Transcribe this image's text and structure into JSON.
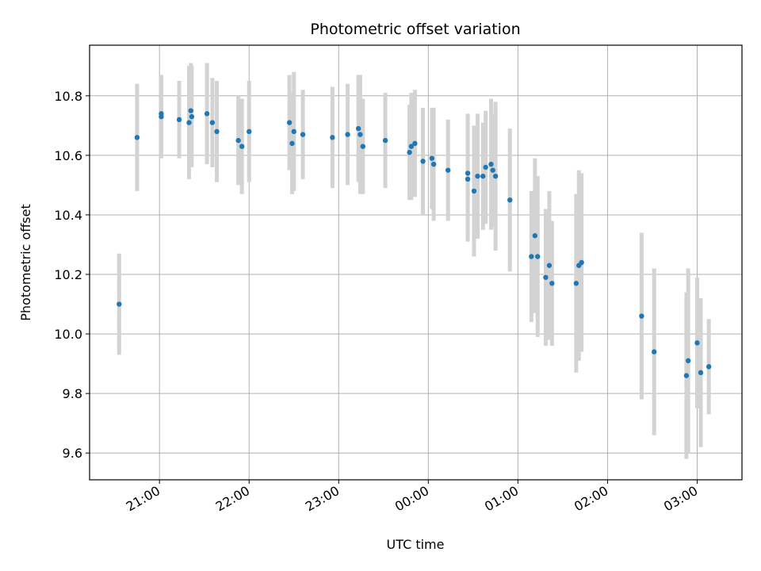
{
  "chart_data": {
    "type": "scatter",
    "title": "Photometric offset variation",
    "xlabel": "UTC time",
    "ylabel": "Photometric offset",
    "x_unit": "hours",
    "xlim": [
      -3.78,
      3.5
    ],
    "ylim": [
      9.51,
      10.97
    ],
    "grid": true,
    "x_ticks": [
      {
        "value": -3,
        "label": "21:00"
      },
      {
        "value": -2,
        "label": "22:00"
      },
      {
        "value": -1,
        "label": "23:00"
      },
      {
        "value": 0,
        "label": "00:00"
      },
      {
        "value": 1,
        "label": "01:00"
      },
      {
        "value": 2,
        "label": "02:00"
      },
      {
        "value": 3,
        "label": "03:00"
      }
    ],
    "y_ticks": [
      {
        "value": 9.6,
        "label": "9.6"
      },
      {
        "value": 9.8,
        "label": "9.8"
      },
      {
        "value": 10.0,
        "label": "10.0"
      },
      {
        "value": 10.2,
        "label": "10.2"
      },
      {
        "value": 10.4,
        "label": "10.4"
      },
      {
        "value": 10.6,
        "label": "10.6"
      },
      {
        "value": 10.8,
        "label": "10.8"
      }
    ],
    "colors": {
      "point": "#1f77b4",
      "errorbar": "#d3d3d3",
      "grid": "#b0b0b0"
    },
    "points": [
      {
        "x": -3.45,
        "y": 10.1,
        "err": 0.17
      },
      {
        "x": -3.25,
        "y": 10.66,
        "err": 0.18
      },
      {
        "x": -2.98,
        "y": 10.73,
        "err": 0.14
      },
      {
        "x": -2.98,
        "y": 10.74,
        "err": 0.13
      },
      {
        "x": -2.78,
        "y": 10.72,
        "err": 0.13
      },
      {
        "x": -2.67,
        "y": 10.71,
        "err": 0.19
      },
      {
        "x": -2.65,
        "y": 10.75,
        "err": 0.16
      },
      {
        "x": -2.64,
        "y": 10.73,
        "err": 0.17
      },
      {
        "x": -2.47,
        "y": 10.74,
        "err": 0.17
      },
      {
        "x": -2.41,
        "y": 10.71,
        "err": 0.15
      },
      {
        "x": -2.36,
        "y": 10.68,
        "err": 0.17
      },
      {
        "x": -2.12,
        "y": 10.65,
        "err": 0.15
      },
      {
        "x": -2.08,
        "y": 10.63,
        "err": 0.16
      },
      {
        "x": -2.0,
        "y": 10.68,
        "err": 0.17
      },
      {
        "x": -1.55,
        "y": 10.71,
        "err": 0.16
      },
      {
        "x": -1.52,
        "y": 10.64,
        "err": 0.17
      },
      {
        "x": -1.5,
        "y": 10.68,
        "err": 0.2
      },
      {
        "x": -1.4,
        "y": 10.67,
        "err": 0.15
      },
      {
        "x": -1.07,
        "y": 10.66,
        "err": 0.17
      },
      {
        "x": -0.9,
        "y": 10.67,
        "err": 0.17
      },
      {
        "x": -0.78,
        "y": 10.69,
        "err": 0.18
      },
      {
        "x": -0.76,
        "y": 10.67,
        "err": 0.2
      },
      {
        "x": -0.73,
        "y": 10.63,
        "err": 0.16
      },
      {
        "x": -0.48,
        "y": 10.65,
        "err": 0.16
      },
      {
        "x": -0.21,
        "y": 10.61,
        "err": 0.16
      },
      {
        "x": -0.19,
        "y": 10.63,
        "err": 0.18
      },
      {
        "x": -0.15,
        "y": 10.64,
        "err": 0.18
      },
      {
        "x": -0.06,
        "y": 10.58,
        "err": 0.18
      },
      {
        "x": 0.04,
        "y": 10.59,
        "err": 0.17
      },
      {
        "x": 0.06,
        "y": 10.57,
        "err": 0.19
      },
      {
        "x": 0.22,
        "y": 10.55,
        "err": 0.17
      },
      {
        "x": 0.44,
        "y": 10.54,
        "err": 0.2
      },
      {
        "x": 0.44,
        "y": 10.52,
        "err": 0.21
      },
      {
        "x": 0.51,
        "y": 10.48,
        "err": 0.22
      },
      {
        "x": 0.55,
        "y": 10.53,
        "err": 0.21
      },
      {
        "x": 0.61,
        "y": 10.53,
        "err": 0.18
      },
      {
        "x": 0.64,
        "y": 10.56,
        "err": 0.19
      },
      {
        "x": 0.7,
        "y": 10.57,
        "err": 0.22
      },
      {
        "x": 0.72,
        "y": 10.55,
        "err": 0.19
      },
      {
        "x": 0.75,
        "y": 10.53,
        "err": 0.25
      },
      {
        "x": 0.91,
        "y": 10.45,
        "err": 0.24
      },
      {
        "x": 1.15,
        "y": 10.26,
        "err": 0.22
      },
      {
        "x": 1.19,
        "y": 10.33,
        "err": 0.26
      },
      {
        "x": 1.22,
        "y": 10.26,
        "err": 0.27
      },
      {
        "x": 1.31,
        "y": 10.19,
        "err": 0.23
      },
      {
        "x": 1.35,
        "y": 10.23,
        "err": 0.25
      },
      {
        "x": 1.38,
        "y": 10.17,
        "err": 0.21
      },
      {
        "x": 1.65,
        "y": 10.17,
        "err": 0.3
      },
      {
        "x": 1.68,
        "y": 10.23,
        "err": 0.32
      },
      {
        "x": 1.71,
        "y": 10.24,
        "err": 0.3
      },
      {
        "x": 2.38,
        "y": 10.06,
        "err": 0.28
      },
      {
        "x": 2.52,
        "y": 9.94,
        "err": 0.28
      },
      {
        "x": 2.88,
        "y": 9.86,
        "err": 0.28
      },
      {
        "x": 2.9,
        "y": 9.91,
        "err": 0.31
      },
      {
        "x": 3.0,
        "y": 9.97,
        "err": 0.22
      },
      {
        "x": 3.04,
        "y": 9.87,
        "err": 0.25
      },
      {
        "x": 3.13,
        "y": 9.89,
        "err": 0.16
      }
    ]
  }
}
